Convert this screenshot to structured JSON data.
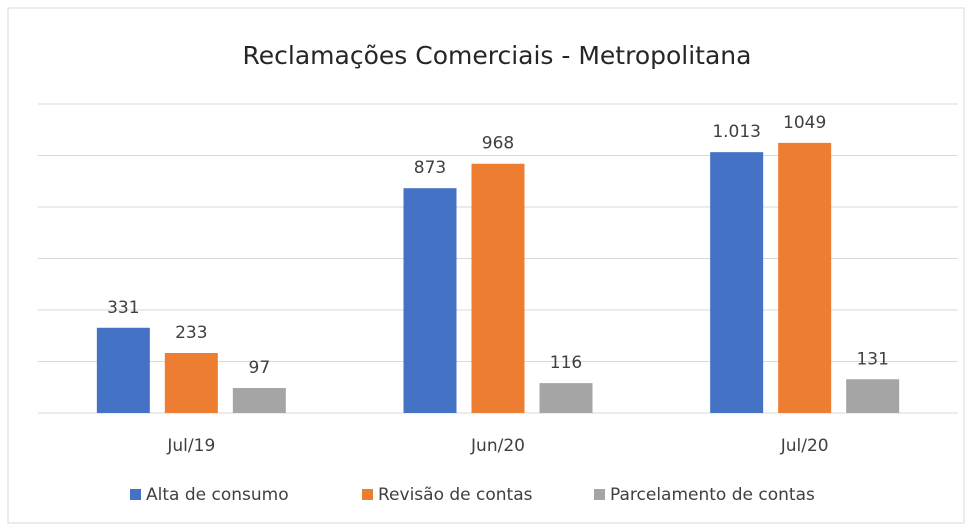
{
  "chart_data": {
    "type": "bar",
    "title": "Reclamações Comerciais - Metropolitana",
    "categories": [
      "Jul/19",
      "Jun/20",
      "Jul/20"
    ],
    "series": [
      {
        "name": "Alta de consumo",
        "color": "#4472c4",
        "values": [
          331,
          873,
          1013
        ],
        "value_labels": [
          "331",
          "873",
          "1.013"
        ]
      },
      {
        "name": "Revisão de contas",
        "color": "#ed7d31",
        "values": [
          233,
          968,
          1049
        ]
      },
      {
        "name": "Parcelamento de contas",
        "color": "#a5a5a5",
        "values": [
          97,
          116,
          131
        ]
      }
    ],
    "ylim": [
      0,
      1200
    ],
    "yticks": [
      0,
      200,
      400,
      600,
      800,
      1000,
      1200
    ],
    "grid": true,
    "legend": "bottom"
  }
}
